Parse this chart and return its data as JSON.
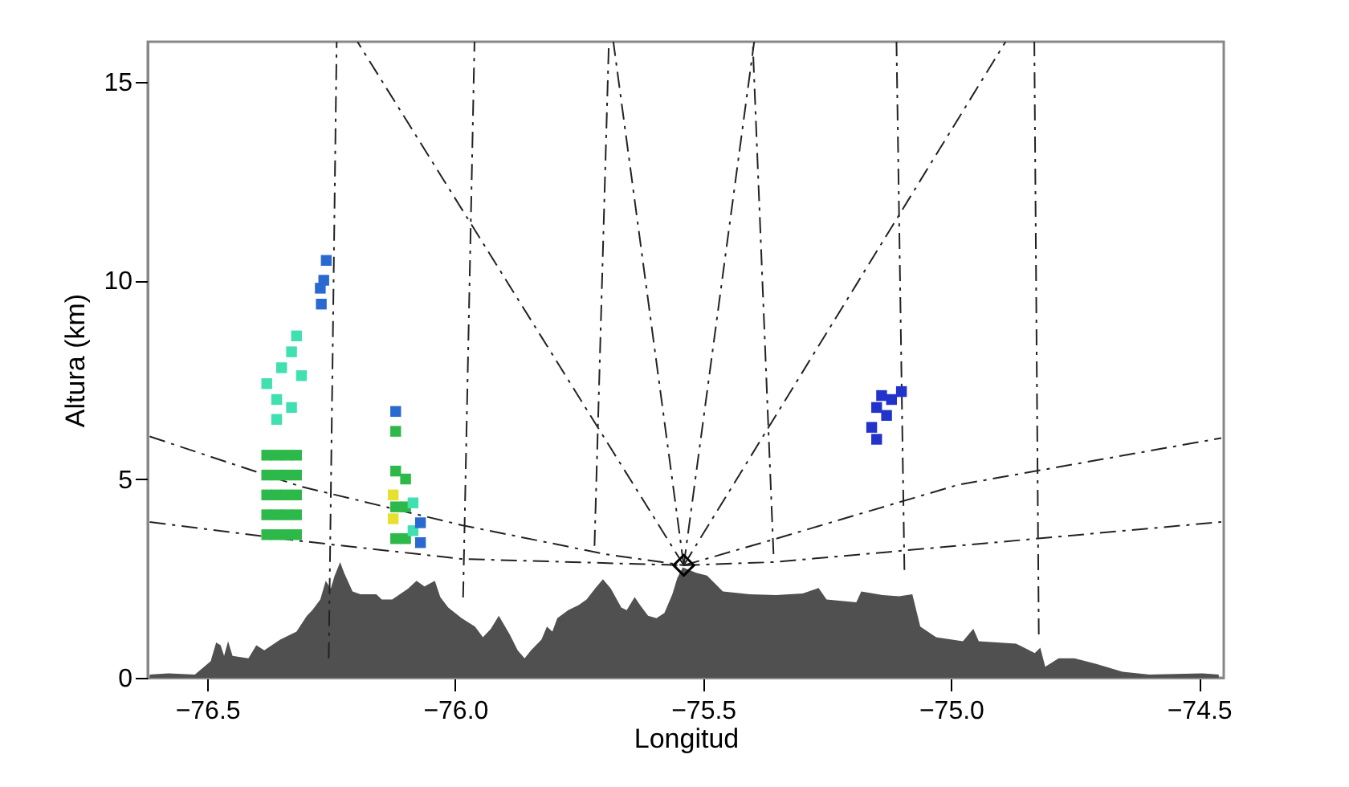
{
  "chart_data": {
    "type": "line",
    "xlabel": "Longitud",
    "ylabel": "Altura (km)",
    "xlim": [
      -76.62,
      -74.45
    ],
    "xticks": [
      -76.5,
      {
        "value": -76,
        "label": "−76.0"
      },
      -75.5,
      {
        "value": -75,
        "label": "−75.0"
      },
      -74.5
    ],
    "ylim": [
      0,
      16
    ],
    "yticks": [
      0,
      5,
      10,
      15
    ],
    "grid": false,
    "series": [
      {
        "type": "area",
        "color": "#505050",
        "x": [
          -76.616,
          -76.578,
          -76.525,
          -76.493,
          -76.482,
          -76.473,
          -76.466,
          -76.458,
          -76.449,
          -76.417,
          -76.401,
          -76.385,
          -76.353,
          -76.32,
          -76.299,
          -76.288,
          -76.272,
          -76.261,
          -76.251,
          -76.243,
          -76.232,
          -76.224,
          -76.207,
          -76.191,
          -76.159,
          -76.148,
          -76.127,
          -76.095,
          -76.078,
          -76.062,
          -76.041,
          -76.03,
          -76.014,
          -75.987,
          -75.96,
          -75.944,
          -75.928,
          -75.912,
          -75.89,
          -75.874,
          -75.86,
          -75.847,
          -75.826,
          -75.815,
          -75.804,
          -75.794,
          -75.772,
          -75.751,
          -75.735,
          -75.718,
          -75.702,
          -75.686,
          -75.665,
          -75.654,
          -75.638,
          -75.627,
          -75.611,
          -75.594,
          -75.578,
          -75.562,
          -75.552,
          -75.541,
          -75.514,
          -75.492,
          -75.46,
          -75.406,
          -75.353,
          -75.299,
          -75.267,
          -75.251,
          -75.191,
          -75.181,
          -75.138,
          -75.105,
          -75.078,
          -75.062,
          -75.03,
          -74.976,
          -74.955,
          -74.944,
          -74.869,
          -74.831,
          -74.82,
          -74.81,
          -74.783,
          -74.751,
          -74.707,
          -74.654,
          -74.6,
          -74.493,
          -74.46
        ],
        "values": [
          0.08,
          0.11,
          0.08,
          0.42,
          0.89,
          0.82,
          0.55,
          0.92,
          0.55,
          0.49,
          0.82,
          0.69,
          0.96,
          1.16,
          1.56,
          1.7,
          1.97,
          2.44,
          2.24,
          2.57,
          2.91,
          2.64,
          2.17,
          2.1,
          2.1,
          1.97,
          1.97,
          2.24,
          2.44,
          2.3,
          2.44,
          2.03,
          1.77,
          1.5,
          1.29,
          1.02,
          1.23,
          1.56,
          1.09,
          0.69,
          0.49,
          0.69,
          0.96,
          1.29,
          1.16,
          1.5,
          1.7,
          1.83,
          1.97,
          2.24,
          2.48,
          2.24,
          1.77,
          1.7,
          2.03,
          1.83,
          1.56,
          1.5,
          1.63,
          2.1,
          2.51,
          2.78,
          2.64,
          2.57,
          2.17,
          2.1,
          2.08,
          2.12,
          2.26,
          1.97,
          1.9,
          2.17,
          2.08,
          2.05,
          2.1,
          1.29,
          1.02,
          0.92,
          1.23,
          0.92,
          0.86,
          0.62,
          0.76,
          0.28,
          0.49,
          0.49,
          0.35,
          0.15,
          0.08,
          0.11,
          0.08
        ]
      },
      {
        "type": "line",
        "line_style": "dashed",
        "color": "#222222",
        "x": [
          -76.616,
          -76.311,
          -75.987,
          -75.697,
          -75.539
        ],
        "values": [
          6.07,
          4.81,
          3.84,
          3.11,
          2.83
        ]
      },
      {
        "type": "line",
        "line_style": "dashed",
        "color": "#222222",
        "x": [
          -76.616,
          -76.311,
          -75.987,
          -75.539
        ],
        "values": [
          3.92,
          3.44,
          2.99,
          2.83
        ]
      },
      {
        "type": "line",
        "line_style": "dashed",
        "color": "#222222",
        "x": [
          -75.539,
          -75.358,
          -74.987,
          -74.455
        ],
        "values": [
          2.83,
          3.48,
          4.85,
          6.03
        ]
      },
      {
        "type": "line",
        "line_style": "dashed",
        "color": "#222222",
        "x": [
          -75.539,
          -75.358,
          -74.987,
          -74.455
        ],
        "values": [
          2.83,
          2.91,
          3.32,
          3.92
        ]
      },
      {
        "type": "line",
        "line_style": "dashed",
        "color": "#222222",
        "x": [
          -75.539,
          -76.197
        ],
        "values": [
          2.83,
          16
        ]
      },
      {
        "type": "line",
        "line_style": "dashed",
        "color": "#222222",
        "x": [
          -75.539,
          -75.681
        ],
        "values": [
          2.83,
          16
        ]
      },
      {
        "type": "line",
        "line_style": "dashed",
        "color": "#222222",
        "x": [
          -75.539,
          -75.397
        ],
        "values": [
          2.83,
          16
        ]
      },
      {
        "type": "line",
        "line_style": "dashed",
        "color": "#222222",
        "x": [
          -75.539,
          -74.89
        ],
        "values": [
          2.83,
          16
        ]
      },
      {
        "type": "line",
        "line_style": "dashed",
        "color": "#222222",
        "x": [
          -76.255,
          -76.239
        ],
        "values": [
          0.49,
          16
        ]
      },
      {
        "type": "line",
        "line_style": "dashed",
        "color": "#222222",
        "x": [
          -75.984,
          -75.961
        ],
        "values": [
          2.02,
          16
        ]
      },
      {
        "type": "line",
        "line_style": "dashed",
        "color": "#222222",
        "x": [
          -75.719,
          -75.69
        ],
        "values": [
          3.32,
          16
        ]
      },
      {
        "type": "line",
        "line_style": "dashed",
        "color": "#222222",
        "x": [
          -75.358,
          -75.4
        ],
        "values": [
          3.11,
          16
        ]
      },
      {
        "type": "line",
        "line_style": "dashed",
        "color": "#222222",
        "x": [
          -75.094,
          -75.11
        ],
        "values": [
          2.71,
          16
        ]
      },
      {
        "type": "line",
        "line_style": "dashed",
        "color": "#222222",
        "x": [
          -74.823,
          -74.832
        ],
        "values": [
          1.09,
          16
        ]
      },
      {
        "type": "scatter",
        "marker": "square",
        "color": "#2db84a",
        "x": [
          -76.38,
          -76.38,
          -76.38,
          -76.38,
          -76.38,
          -76.36,
          -76.36,
          -76.36,
          -76.36,
          -76.36,
          -76.34,
          -76.34,
          -76.34,
          -76.34,
          -76.34,
          -76.32,
          -76.32,
          -76.32,
          -76.32,
          -76.32,
          -76.12,
          -76.12,
          -76.12,
          -76.12,
          -76.1,
          -76.1,
          -76.1
        ],
        "values": [
          3.6,
          4.1,
          4.6,
          5.1,
          5.6,
          3.6,
          4.1,
          4.6,
          5.1,
          5.6,
          3.6,
          4.1,
          4.6,
          5.1,
          5.6,
          3.6,
          4.1,
          4.6,
          5.1,
          5.6,
          3.5,
          4.3,
          5.2,
          6.2,
          3.5,
          4.3,
          5.0
        ]
      },
      {
        "type": "scatter",
        "marker": "square",
        "color": "#40e0b0",
        "x": [
          -76.38,
          -76.36,
          -76.35,
          -76.33,
          -76.32,
          -76.36,
          -76.33,
          -76.31,
          -76.085,
          -76.085
        ],
        "values": [
          7.4,
          7.0,
          7.8,
          8.2,
          8.6,
          6.5,
          6.8,
          7.6,
          3.7,
          4.4
        ]
      },
      {
        "type": "scatter",
        "marker": "square",
        "color": "#e8e030",
        "x": [
          -76.125,
          -76.125
        ],
        "values": [
          4.0,
          4.6
        ]
      },
      {
        "type": "scatter",
        "marker": "square",
        "color": "#2a6ad0",
        "x": [
          -76.27,
          -76.265,
          -76.26,
          -76.272,
          -76.07,
          -76.07,
          -76.12
        ],
        "values": [
          9.4,
          10.0,
          10.5,
          9.8,
          3.9,
          3.4,
          6.7
        ]
      },
      {
        "type": "scatter",
        "marker": "square",
        "color": "#2233cc",
        "x": [
          -75.16,
          -75.15,
          -75.14,
          -75.15,
          -75.13,
          -75.12,
          -75.1
        ],
        "values": [
          6.3,
          6.8,
          7.1,
          6.0,
          6.6,
          7.0,
          7.2
        ]
      },
      {
        "type": "scatter",
        "marker": "diamond",
        "color": "#000000",
        "x": [
          -75.539
        ],
        "values": [
          2.83
        ]
      }
    ]
  }
}
